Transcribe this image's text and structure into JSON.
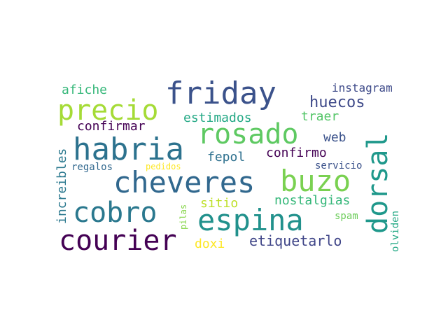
{
  "wordcloud": {
    "words": [
      {
        "text": "friday",
        "color": "#3b528b"
      },
      {
        "text": "precio",
        "color": "#a5db36"
      },
      {
        "text": "habria",
        "color": "#2c728e"
      },
      {
        "text": "rosado",
        "color": "#5ec962"
      },
      {
        "text": "cheveres",
        "color": "#31688e"
      },
      {
        "text": "buzo",
        "color": "#7ad151"
      },
      {
        "text": "cobro",
        "color": "#2a788e"
      },
      {
        "text": "espina",
        "color": "#21918c"
      },
      {
        "text": "courier",
        "color": "#440154"
      },
      {
        "text": "dorsal",
        "color": "#1f988b"
      },
      {
        "text": "afiche",
        "color": "#35b779"
      },
      {
        "text": "instagram",
        "color": "#3e4a89"
      },
      {
        "text": "huecos",
        "color": "#3e4989"
      },
      {
        "text": "estimados",
        "color": "#22a884"
      },
      {
        "text": "traer",
        "color": "#54c568"
      },
      {
        "text": "confirmar",
        "color": "#440154"
      },
      {
        "text": "web",
        "color": "#3b528b"
      },
      {
        "text": "fepol",
        "color": "#2d708e"
      },
      {
        "text": "confirmo",
        "color": "#440154"
      },
      {
        "text": "increibles",
        "color": "#2a788e"
      },
      {
        "text": "regalos",
        "color": "#31688e"
      },
      {
        "text": "pedidos",
        "color": "#fde725"
      },
      {
        "text": "servicio",
        "color": "#3b528b"
      },
      {
        "text": "nostalgias",
        "color": "#35b779"
      },
      {
        "text": "sitio",
        "color": "#bddf26"
      },
      {
        "text": "pilas",
        "color": "#86d549"
      },
      {
        "text": "spam",
        "color": "#6ccd5a"
      },
      {
        "text": "olviden",
        "color": "#22a884"
      },
      {
        "text": "doxi",
        "color": "#fde725"
      },
      {
        "text": "etiquetarlo",
        "color": "#404688"
      }
    ]
  }
}
